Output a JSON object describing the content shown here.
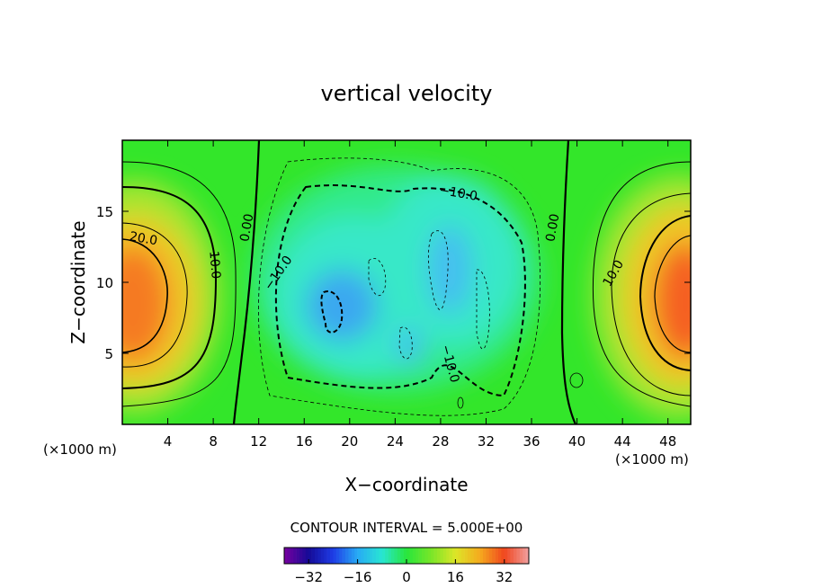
{
  "chart_data": {
    "type": "heatmap",
    "title": "vertical velocity",
    "xlabel": "X−coordinate",
    "ylabel": "Z−coordinate",
    "xunit_left": "(×1000 m)",
    "xunit_right": "(×1000 m)",
    "xlim": [
      0,
      50
    ],
    "ylim": [
      0,
      20
    ],
    "x_ticks": [
      4,
      8,
      12,
      16,
      20,
      24,
      28,
      32,
      36,
      40,
      44,
      48
    ],
    "y_ticks": [
      5,
      10,
      15
    ],
    "contour_labels": [
      {
        "text": "20.0",
        "x": 1.8,
        "y": 12.8
      },
      {
        "text": "10.0",
        "x": 7.8,
        "y": 11.2
      },
      {
        "text": "0.00",
        "x": 11.3,
        "y": 13.8
      },
      {
        "text": "−10.0",
        "x": 14.0,
        "y": 10.5
      },
      {
        "text": "−10.0",
        "x": 29.5,
        "y": 16.0
      },
      {
        "text": "−10.0",
        "x": 28.5,
        "y": 4.2
      },
      {
        "text": "0.00",
        "x": 38.2,
        "y": 13.8
      },
      {
        "text": "10.0",
        "x": 43.5,
        "y": 10.5
      }
    ],
    "contour_interval_label": "CONTOUR INTERVAL = 5.000E+00",
    "colorbar": {
      "min": -40,
      "max": 40,
      "tick_labels": [
        "−32",
        "−16",
        "0",
        "16",
        "32"
      ],
      "tick_values": [
        -32,
        -16,
        0,
        16,
        32
      ]
    }
  }
}
